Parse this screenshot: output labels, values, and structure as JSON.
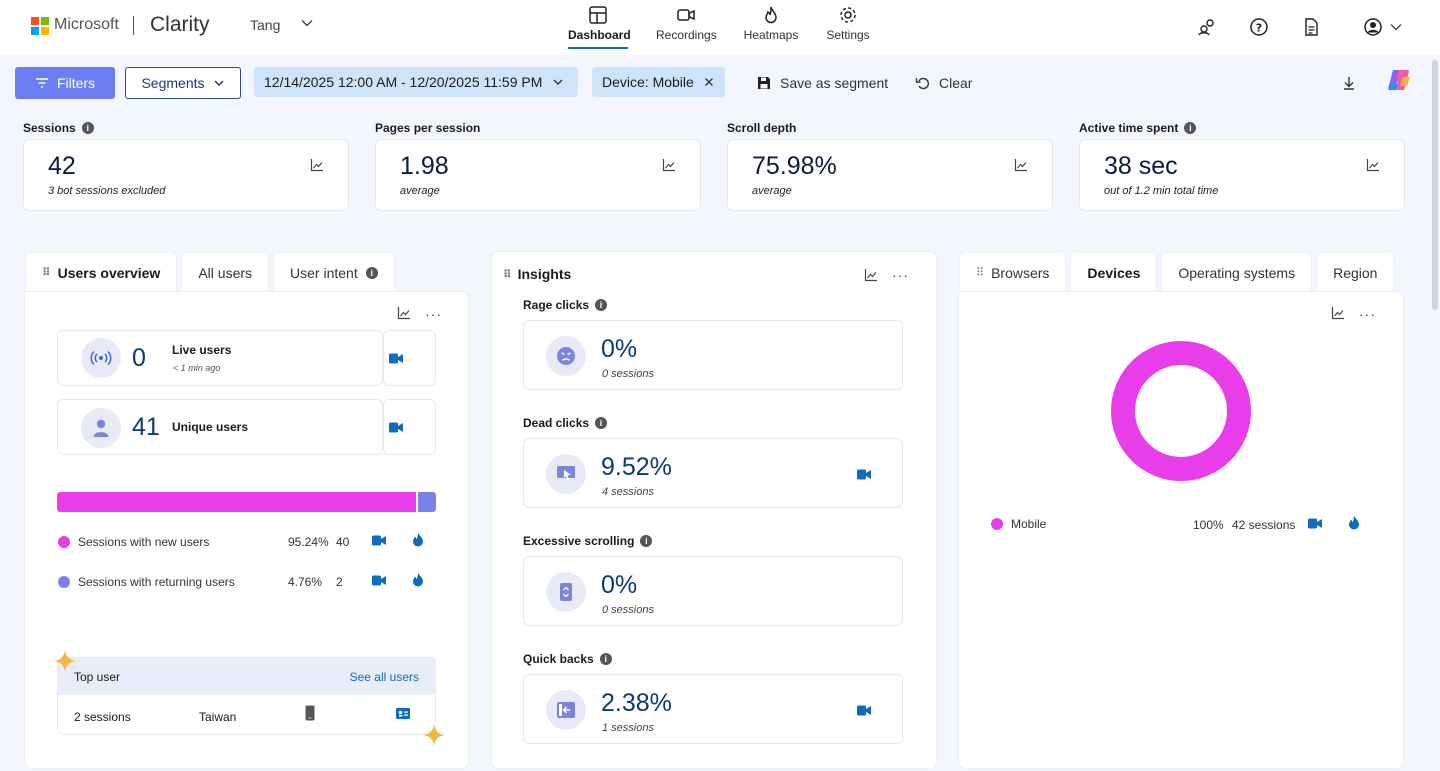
{
  "brand": {
    "company": "Microsoft",
    "product": "Clarity",
    "project": "Tang"
  },
  "nav": [
    {
      "label": "Dashboard",
      "icon": "dashboard-icon",
      "active": true
    },
    {
      "label": "Recordings",
      "icon": "video-icon",
      "active": false
    },
    {
      "label": "Heatmaps",
      "icon": "flame-icon",
      "active": false
    },
    {
      "label": "Settings",
      "icon": "gear-icon",
      "active": false
    }
  ],
  "filterbar": {
    "filters_label": "Filters",
    "segments_label": "Segments",
    "date_range": "12/14/2025 12:00 AM - 12/20/2025 11:59 PM",
    "device_chip": "Device: Mobile",
    "save_segment_label": "Save as segment",
    "clear_label": "Clear"
  },
  "metrics": [
    {
      "label": "Sessions",
      "value": "42",
      "sub": "3 bot sessions excluded",
      "info": true
    },
    {
      "label": "Pages per session",
      "value": "1.98",
      "sub": "average",
      "info": false
    },
    {
      "label": "Scroll depth",
      "value": "75.98%",
      "sub": "average",
      "info": false
    },
    {
      "label": "Active time spent",
      "value": "38 sec",
      "sub": "out of 1.2 min total time",
      "info": true
    }
  ],
  "users": {
    "tabs": [
      "Users overview",
      "All users",
      "User intent"
    ],
    "live_value": "0",
    "live_label": "Live users",
    "live_sub": "< 1 min ago",
    "unique_value": "41",
    "unique_label": "Unique users",
    "new_fraction": 0.9524,
    "rows": [
      {
        "label": "Sessions with new users",
        "pct": "95.24%",
        "count": "40",
        "color": "#e83de8"
      },
      {
        "label": "Sessions with returning users",
        "pct": "4.76%",
        "count": "2",
        "color": "#7b83eb"
      }
    ],
    "top_user_label": "Top user",
    "see_all": "See all users",
    "top_sessions": "2 sessions",
    "top_country": "Taiwan"
  },
  "insights": {
    "title": "Insights",
    "items": [
      {
        "label": "Rage clicks",
        "pct": "0%",
        "sessions": "0 sessions",
        "icon": "angry-face-icon",
        "video": false
      },
      {
        "label": "Dead clicks",
        "pct": "9.52%",
        "sessions": "4 sessions",
        "icon": "dead-click-icon",
        "video": true
      },
      {
        "label": "Excessive scrolling",
        "pct": "0%",
        "sessions": "0 sessions",
        "icon": "scroll-icon",
        "video": false
      },
      {
        "label": "Quick backs",
        "pct": "2.38%",
        "sessions": "1 sessions",
        "icon": "back-icon",
        "video": true
      }
    ]
  },
  "devices": {
    "tabs": [
      "Browsers",
      "Devices",
      "Operating systems",
      "Region"
    ],
    "legend_label": "Mobile",
    "legend_pct": "100%",
    "legend_sessions": "42 sessions",
    "color": "#e83de8"
  }
}
